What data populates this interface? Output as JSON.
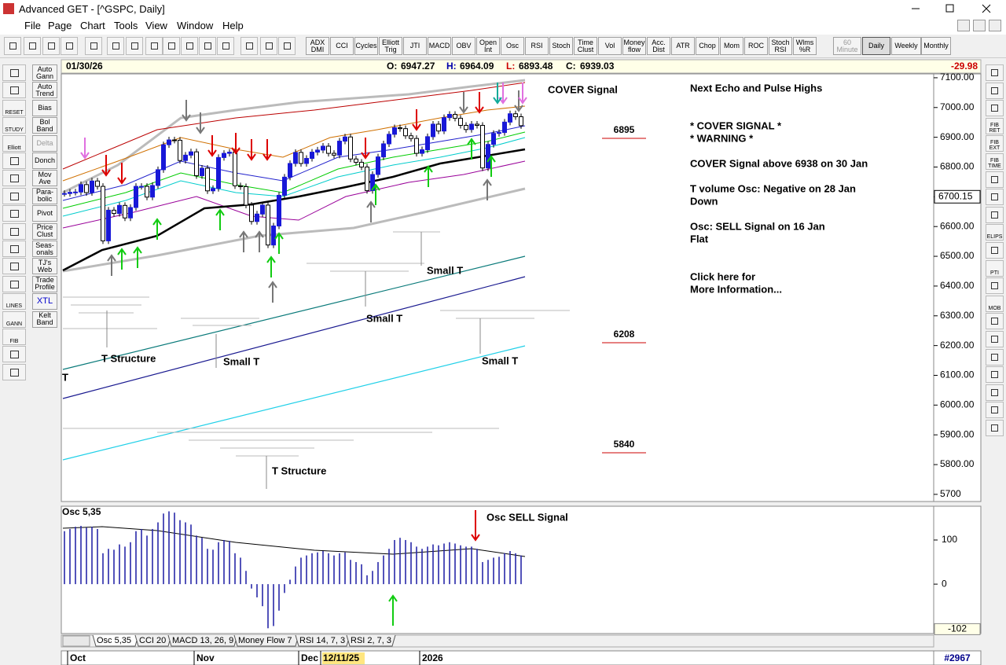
{
  "window": {
    "title": "Advanced GET - [^GSPC, Daily]"
  },
  "menu": [
    "File",
    "Page",
    "Chart",
    "Tools",
    "View",
    "Window",
    "Help"
  ],
  "toolbar": [
    "ADX DMI",
    "CCI",
    "Cycles",
    "Elliott Trig",
    "JTI",
    "MACD",
    "OBV",
    "Open Int",
    "Osc",
    "RSI",
    "Stoch",
    "Time Clust",
    "Vol",
    "Money flow",
    "Acc. Dist",
    "ATR",
    "Chop",
    "Mom",
    "ROC",
    "Stoch RSI",
    "Wlms %R"
  ],
  "timeframes": [
    "60 Minute",
    "Daily",
    "Weekly",
    "Monthly"
  ],
  "left_icons": [
    "RESET",
    "STUDY",
    "Elliott",
    "LINES",
    "GANN",
    "FIB"
  ],
  "studies": [
    "Auto Gann",
    "Auto Trend",
    "Bias",
    "Bol Band",
    "Delta",
    "Donch",
    "Mov Ave",
    "Para-bolic",
    "Pivot",
    "Price Clust",
    "Seas-onals",
    "TJ's Web",
    "Trade Profile",
    "XTL",
    "Kelt Band"
  ],
  "right_icons": [
    "FIB RET",
    "FIB EXT",
    "FIB TIME",
    "ELIPS",
    "PTI",
    "MOB"
  ],
  "header": {
    "date": "01/30/26",
    "open_label": "O:",
    "open": 6947.27,
    "high_label": "H:",
    "high": 6964.09,
    "low_label": "L:",
    "low": 6893.48,
    "close_label": "C:",
    "close": 6939.03,
    "change": -29.98
  },
  "price_chart": {
    "ylim": [
      5676,
      7113
    ],
    "yticks": [
      {
        "value": 7100,
        "label": "7100.00"
      },
      {
        "value": 7000,
        "label": "7000.00"
      },
      {
        "value": 6900,
        "label": "6900.00"
      },
      {
        "value": 6800,
        "label": "6800.00"
      },
      {
        "value": 6700,
        "label": "6700.00"
      },
      {
        "value": 6600,
        "label": "6600.00"
      },
      {
        "value": 6500,
        "label": "6500.00"
      },
      {
        "value": 6400,
        "label": "6400.00"
      },
      {
        "value": 6300,
        "label": "6300.00"
      },
      {
        "value": 6200,
        "label": "6200.00"
      },
      {
        "value": 6100,
        "label": "6100.00"
      },
      {
        "value": 6000,
        "label": "6000.00"
      },
      {
        "value": 5900,
        "label": "5900.00"
      },
      {
        "value": 5800,
        "label": "5800.00"
      },
      {
        "value": 5700,
        "label": "5700"
      }
    ],
    "closes": [
      6711,
      6715,
      6716,
      6741,
      6714,
      6753,
      6735,
      6552,
      6655,
      6644,
      6671,
      6629,
      6664,
      6735,
      6735,
      6699,
      6738,
      6791,
      6875,
      6891,
      6890,
      6822,
      6840,
      6851,
      6771,
      6796,
      6720,
      6728,
      6832,
      6846,
      6850,
      6737,
      6734,
      6672,
      6617,
      6642,
      6672,
      6538,
      6602,
      6705,
      6766,
      6812,
      6849,
      6812,
      6829,
      6850,
      6857,
      6870,
      6846,
      6840,
      6887,
      6901,
      6827,
      6816,
      6800,
      6721,
      6775,
      6834,
      6878,
      6910,
      6932,
      6929,
      6905,
      6896,
      6846,
      6858,
      6902,
      6944,
      6921,
      6966,
      6977,
      6964,
      6940,
      6926,
      6944,
      6940,
      6797,
      6876,
      6913,
      6916,
      6951,
      6979,
      6969,
      6939
    ],
    "crosshair_price": 6700.15,
    "levels": [
      6895,
      6208,
      5840
    ],
    "annotations": [
      "COVER Signal",
      "T Structure",
      "Small T",
      "Small T",
      "Small T",
      "Small T",
      "T Structure",
      "T"
    ]
  },
  "info_panel": [
    "Next Echo and Pulse Highs",
    "* COVER SIGNAL *",
    "* WARNING *",
    "COVER Signal above 6938 on 30 Jan",
    "T volume Osc: Negative on 28 Jan",
    "Down",
    "Osc: SELL Signal on 16 Jan",
    "Flat",
    "Click here for",
    "More Information..."
  ],
  "osc_chart": {
    "label": "Osc 5,35",
    "annotation": "Osc SELL Signal",
    "ylim": [
      -112,
      173
    ],
    "yticks": [
      100,
      0
    ],
    "min_label": -102,
    "values": [
      120,
      125,
      130,
      132,
      128,
      130,
      125,
      70,
      80,
      78,
      90,
      85,
      95,
      120,
      125,
      110,
      125,
      140,
      160,
      165,
      162,
      145,
      140,
      135,
      110,
      105,
      80,
      78,
      95,
      100,
      98,
      70,
      60,
      30,
      -10,
      -30,
      -50,
      -100,
      -95,
      -60,
      -20,
      10,
      40,
      60,
      65,
      70,
      72,
      75,
      70,
      65,
      70,
      72,
      55,
      50,
      45,
      20,
      30,
      50,
      65,
      80,
      100,
      105,
      100,
      95,
      85,
      80,
      85,
      90,
      88,
      92,
      95,
      92,
      88,
      85,
      85,
      80,
      50,
      55,
      60,
      62,
      70,
      75,
      70,
      65
    ]
  },
  "tabs": [
    "Osc 5,35",
    "CCI 20",
    "MACD 13, 26, 9",
    "Money Flow 7",
    "RSI 14, 7, 3",
    "RSI 2, 7, 3"
  ],
  "time_axis": [
    "Oct",
    "Nov",
    "Dec",
    "12/11/25",
    "2026"
  ],
  "bar_number": "#2967"
}
